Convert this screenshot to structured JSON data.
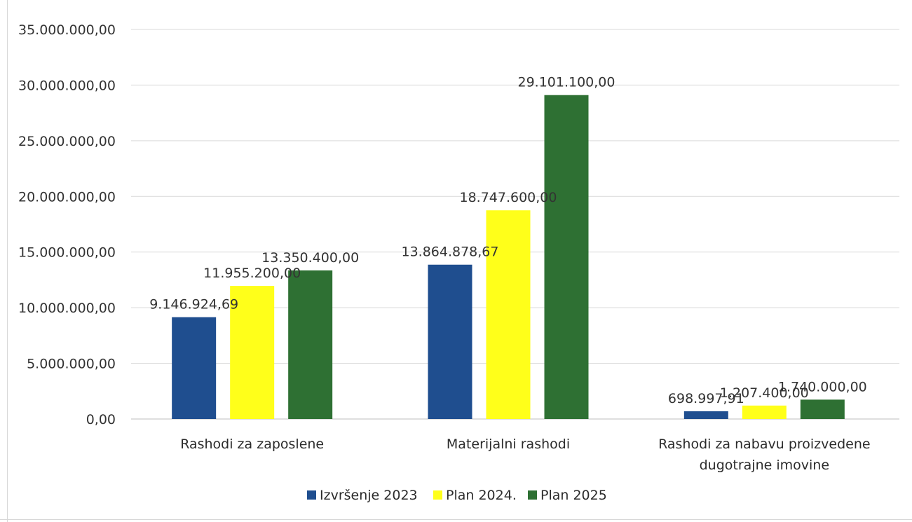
{
  "chart_data": {
    "type": "bar",
    "categories": [
      [
        "Rashodi za zaposlene"
      ],
      [
        "Materijalni rashodi"
      ],
      [
        "Rashodi za nabavu proizvedene",
        "dugotrajne imovine"
      ]
    ],
    "series": [
      {
        "name": "Izvršenje 2023",
        "color": "#1f4e8f",
        "values": [
          9146924.69,
          13864878.67,
          698997.91
        ],
        "labels": [
          "9.146.924,69",
          "13.864.878,67",
          "698.997,91"
        ]
      },
      {
        "name": "Plan 2024.",
        "color": "#ffff1a",
        "values": [
          11955200.0,
          18747600.0,
          1207400.0
        ],
        "labels": [
          "11.955.200,00",
          "18.747.600,00",
          "1.207.400,00"
        ]
      },
      {
        "name": "Plan 2025",
        "color": "#2e7033",
        "values": [
          13350400.0,
          29101100.0,
          1740000.0
        ],
        "labels": [
          "13.350.400,00",
          "29.101.100,00",
          "1.740.000,00"
        ]
      }
    ],
    "y_ticks": [
      0,
      5000000,
      10000000,
      15000000,
      20000000,
      25000000,
      30000000,
      35000000
    ],
    "y_tick_labels": [
      "0,00",
      "5.000.000,00",
      "10.000.000,00",
      "15.000.000,00",
      "20.000.000,00",
      "25.000.000,00",
      "30.000.000,00",
      "35.000.000,00"
    ],
    "ylim": [
      0,
      35000000
    ],
    "title": "",
    "xlabel": "",
    "ylabel": "",
    "grid": true,
    "legend_position": "bottom"
  }
}
